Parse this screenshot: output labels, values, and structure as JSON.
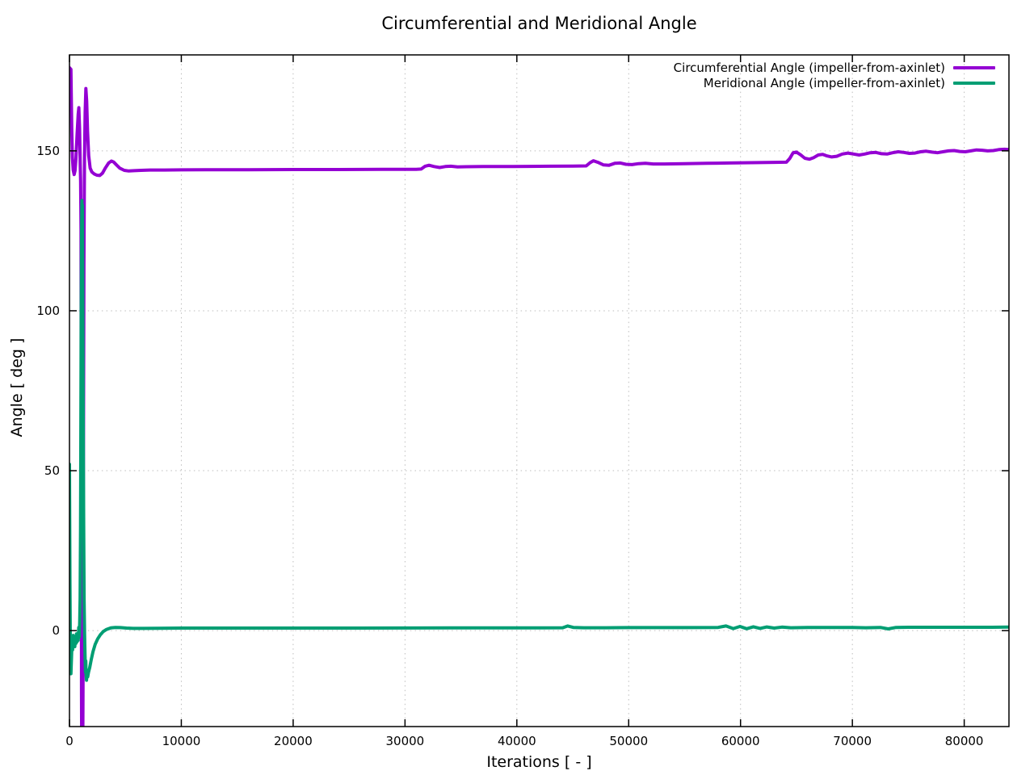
{
  "chart_data": {
    "type": "line",
    "title": "Circumferential and Meridional Angle",
    "xlabel": "Iterations [ - ]",
    "ylabel": "Angle [ deg ]",
    "xlim": [
      0,
      84000
    ],
    "ylim": [
      -30,
      180
    ],
    "xticks": [
      0,
      10000,
      20000,
      30000,
      40000,
      50000,
      60000,
      70000,
      80000
    ],
    "yticks": [
      0,
      50,
      100,
      150
    ],
    "grid": "dotted",
    "grid_color": "#bdbdbd",
    "background": "#ffffff",
    "legend_position": "top-right-inside",
    "series": [
      {
        "name": "Circumferential Angle (impeller-from-axinlet)",
        "color": "#9400D3",
        "points": [
          [
            0,
            176
          ],
          [
            130,
            175.5
          ],
          [
            200,
            157
          ],
          [
            260,
            148
          ],
          [
            330,
            144
          ],
          [
            420,
            142.6
          ],
          [
            500,
            143.8
          ],
          [
            580,
            147.5
          ],
          [
            680,
            155
          ],
          [
            780,
            161.5
          ],
          [
            840,
            163.5
          ],
          [
            900,
            157
          ],
          [
            960,
            146
          ],
          [
            1000,
            140.5
          ],
          [
            1030,
            125
          ],
          [
            1060,
            40
          ],
          [
            1075,
            -20
          ],
          [
            1090,
            -35
          ],
          [
            1195,
            -35
          ],
          [
            1215,
            -15
          ],
          [
            1250,
            55
          ],
          [
            1290,
            115
          ],
          [
            1340,
            148
          ],
          [
            1400,
            162
          ],
          [
            1465,
            169.5
          ],
          [
            1540,
            165.5
          ],
          [
            1620,
            156
          ],
          [
            1720,
            148.5
          ],
          [
            1850,
            144.6
          ],
          [
            2000,
            143.4
          ],
          [
            2200,
            142.8
          ],
          [
            2450,
            142.4
          ],
          [
            2700,
            142.3
          ],
          [
            2950,
            143
          ],
          [
            3200,
            144.6
          ],
          [
            3500,
            146.2
          ],
          [
            3750,
            146.8
          ],
          [
            3950,
            146.5
          ],
          [
            4200,
            145.6
          ],
          [
            4500,
            144.6
          ],
          [
            4900,
            143.9
          ],
          [
            5300,
            143.7
          ],
          [
            5800,
            143.8
          ],
          [
            6400,
            143.9
          ],
          [
            7200,
            144
          ],
          [
            8500,
            144
          ],
          [
            10000,
            144.05
          ],
          [
            13000,
            144.1
          ],
          [
            16000,
            144.1
          ],
          [
            20000,
            144.15
          ],
          [
            24000,
            144.15
          ],
          [
            28000,
            144.2
          ],
          [
            31000,
            144.2
          ],
          [
            31450,
            144.3
          ],
          [
            31800,
            145.2
          ],
          [
            32150,
            145.5
          ],
          [
            32600,
            145.1
          ],
          [
            33100,
            144.8
          ],
          [
            33600,
            145.1
          ],
          [
            34100,
            145.2
          ],
          [
            34700,
            145
          ],
          [
            35500,
            145.05
          ],
          [
            37000,
            145.1
          ],
          [
            39000,
            145.1
          ],
          [
            41000,
            145.15
          ],
          [
            43000,
            145.2
          ],
          [
            45000,
            145.25
          ],
          [
            46200,
            145.3
          ],
          [
            46550,
            146.3
          ],
          [
            46850,
            146.9
          ],
          [
            47250,
            146.4
          ],
          [
            47750,
            145.6
          ],
          [
            48250,
            145.5
          ],
          [
            48750,
            146.1
          ],
          [
            49250,
            146.2
          ],
          [
            49750,
            145.8
          ],
          [
            50300,
            145.7
          ],
          [
            50900,
            146
          ],
          [
            51500,
            146.1
          ],
          [
            52200,
            145.9
          ],
          [
            53200,
            145.9
          ],
          [
            55000,
            146
          ],
          [
            57000,
            146.1
          ],
          [
            59000,
            146.2
          ],
          [
            61000,
            146.3
          ],
          [
            63000,
            146.4
          ],
          [
            64100,
            146.45
          ],
          [
            64400,
            147.6
          ],
          [
            64700,
            149.4
          ],
          [
            65000,
            149.6
          ],
          [
            65350,
            148.8
          ],
          [
            65750,
            147.7
          ],
          [
            66150,
            147.4
          ],
          [
            66550,
            147.9
          ],
          [
            66950,
            148.7
          ],
          [
            67350,
            148.9
          ],
          [
            67750,
            148.4
          ],
          [
            68150,
            148.1
          ],
          [
            68600,
            148.3
          ],
          [
            69100,
            149
          ],
          [
            69600,
            149.3
          ],
          [
            70100,
            149
          ],
          [
            70600,
            148.7
          ],
          [
            71100,
            149
          ],
          [
            71600,
            149.4
          ],
          [
            72100,
            149.5
          ],
          [
            72600,
            149.1
          ],
          [
            73100,
            149
          ],
          [
            73600,
            149.4
          ],
          [
            74100,
            149.7
          ],
          [
            74600,
            149.5
          ],
          [
            75100,
            149.2
          ],
          [
            75600,
            149.3
          ],
          [
            76100,
            149.7
          ],
          [
            76600,
            149.9
          ],
          [
            77100,
            149.6
          ],
          [
            77600,
            149.4
          ],
          [
            78100,
            149.7
          ],
          [
            78600,
            150
          ],
          [
            79100,
            150.1
          ],
          [
            79600,
            149.8
          ],
          [
            80100,
            149.7
          ],
          [
            80600,
            150
          ],
          [
            81100,
            150.3
          ],
          [
            81600,
            150.2
          ],
          [
            82100,
            150
          ],
          [
            82600,
            150.1
          ],
          [
            83100,
            150.4
          ],
          [
            83600,
            150.5
          ],
          [
            84000,
            150.4
          ]
        ]
      },
      {
        "name": "Meridional Angle (impeller-from-axinlet)",
        "color": "#009E73",
        "points": [
          [
            0,
            52
          ],
          [
            40,
            15
          ],
          [
            90,
            -9
          ],
          [
            130,
            -13.5
          ],
          [
            180,
            -8.5
          ],
          [
            230,
            -3
          ],
          [
            280,
            -6
          ],
          [
            330,
            -1.5
          ],
          [
            380,
            -4.5
          ],
          [
            430,
            -2
          ],
          [
            480,
            -5
          ],
          [
            530,
            -2.5
          ],
          [
            580,
            -4
          ],
          [
            630,
            -1
          ],
          [
            680,
            -3.5
          ],
          [
            730,
            -1.5
          ],
          [
            780,
            -3
          ],
          [
            830,
            1
          ],
          [
            880,
            -2
          ],
          [
            920,
            3
          ],
          [
            955,
            10
          ],
          [
            990,
            32
          ],
          [
            1020,
            65
          ],
          [
            1050,
            100
          ],
          [
            1080,
            124
          ],
          [
            1110,
            134.5
          ],
          [
            1140,
            124
          ],
          [
            1165,
            133
          ],
          [
            1195,
            108
          ],
          [
            1230,
            68
          ],
          [
            1270,
            33
          ],
          [
            1310,
            10
          ],
          [
            1350,
            -1
          ],
          [
            1390,
            -7
          ],
          [
            1430,
            -13
          ],
          [
            1460,
            -9.5
          ],
          [
            1490,
            -14
          ],
          [
            1525,
            -15.5
          ],
          [
            1565,
            -13
          ],
          [
            1625,
            -14.5
          ],
          [
            1705,
            -13
          ],
          [
            1810,
            -11.5
          ],
          [
            1950,
            -9
          ],
          [
            2100,
            -6.6
          ],
          [
            2300,
            -4.3
          ],
          [
            2520,
            -2.6
          ],
          [
            2760,
            -1.3
          ],
          [
            3020,
            -0.3
          ],
          [
            3320,
            0.4
          ],
          [
            3700,
            0.85
          ],
          [
            4100,
            1
          ],
          [
            4550,
            0.95
          ],
          [
            5100,
            0.8
          ],
          [
            5700,
            0.7
          ],
          [
            6600,
            0.7
          ],
          [
            8000,
            0.75
          ],
          [
            10000,
            0.8
          ],
          [
            14000,
            0.8
          ],
          [
            18000,
            0.8
          ],
          [
            22000,
            0.8
          ],
          [
            26000,
            0.8
          ],
          [
            30000,
            0.82
          ],
          [
            34000,
            0.85
          ],
          [
            38000,
            0.85
          ],
          [
            42000,
            0.88
          ],
          [
            44100,
            0.9
          ],
          [
            44550,
            1.45
          ],
          [
            45050,
            1
          ],
          [
            46000,
            0.9
          ],
          [
            48000,
            0.9
          ],
          [
            50000,
            0.95
          ],
          [
            52500,
            0.95
          ],
          [
            55000,
            0.95
          ],
          [
            58000,
            1
          ],
          [
            58700,
            1.45
          ],
          [
            59350,
            0.65
          ],
          [
            59950,
            1.3
          ],
          [
            60550,
            0.6
          ],
          [
            61150,
            1.2
          ],
          [
            61750,
            0.7
          ],
          [
            62350,
            1.15
          ],
          [
            63000,
            0.8
          ],
          [
            63700,
            1.1
          ],
          [
            64500,
            0.9
          ],
          [
            66000,
            1
          ],
          [
            68000,
            1
          ],
          [
            70000,
            1
          ],
          [
            71200,
            0.9
          ],
          [
            72500,
            1
          ],
          [
            73200,
            0.55
          ],
          [
            73900,
            1
          ],
          [
            75000,
            1.05
          ],
          [
            78000,
            1.05
          ],
          [
            80500,
            1.05
          ],
          [
            82500,
            1.05
          ],
          [
            84000,
            1.1
          ]
        ]
      }
    ]
  }
}
